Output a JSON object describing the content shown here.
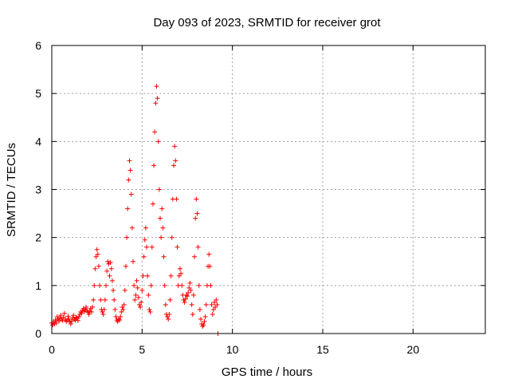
{
  "chart_data": {
    "type": "scatter",
    "title": "Day 093 of 2023, SRMTID for receiver grot",
    "xlabel": "GPS time / hours",
    "ylabel": "SRMTID / TECUs",
    "xlim": [
      0,
      24
    ],
    "ylim": [
      0,
      6
    ],
    "xticks": [
      0,
      5,
      10,
      15,
      20
    ],
    "yticks": [
      0,
      1,
      2,
      3,
      4,
      5,
      6
    ],
    "grid": true,
    "marker": "plus",
    "color": "#ff0000",
    "series": [
      {
        "points": [
          [
            0.0,
            0.22
          ],
          [
            0.05,
            0.18
          ],
          [
            0.1,
            0.25
          ],
          [
            0.15,
            0.2
          ],
          [
            0.2,
            0.28
          ],
          [
            0.25,
            0.22
          ],
          [
            0.3,
            0.35
          ],
          [
            0.35,
            0.3
          ],
          [
            0.4,
            0.26
          ],
          [
            0.45,
            0.32
          ],
          [
            0.5,
            0.38
          ],
          [
            0.55,
            0.3
          ],
          [
            0.6,
            0.27
          ],
          [
            0.65,
            0.34
          ],
          [
            0.7,
            0.42
          ],
          [
            0.75,
            0.3
          ],
          [
            0.8,
            0.25
          ],
          [
            0.85,
            0.28
          ],
          [
            0.9,
            0.36
          ],
          [
            0.95,
            0.3
          ],
          [
            1.0,
            0.24
          ],
          [
            1.05,
            0.2
          ],
          [
            1.1,
            0.26
          ],
          [
            1.15,
            0.33
          ],
          [
            1.2,
            0.38
          ],
          [
            1.25,
            0.3
          ],
          [
            1.3,
            0.28
          ],
          [
            1.35,
            0.34
          ],
          [
            1.4,
            0.32
          ],
          [
            1.45,
            0.27
          ],
          [
            1.5,
            0.35
          ],
          [
            1.55,
            0.4
          ],
          [
            1.6,
            0.45
          ],
          [
            1.65,
            0.42
          ],
          [
            1.7,
            0.48
          ],
          [
            1.75,
            0.52
          ],
          [
            1.8,
            0.46
          ],
          [
            1.85,
            0.5
          ],
          [
            1.9,
            0.55
          ],
          [
            1.95,
            0.48
          ],
          [
            2.0,
            0.44
          ],
          [
            2.05,
            0.4
          ],
          [
            2.1,
            0.46
          ],
          [
            2.15,
            0.52
          ],
          [
            2.2,
            0.45
          ],
          [
            2.25,
            0.55
          ],
          [
            2.3,
            0.7
          ],
          [
            2.35,
            1.0
          ],
          [
            2.4,
            1.35
          ],
          [
            2.45,
            1.6
          ],
          [
            2.5,
            1.75
          ],
          [
            2.55,
            1.65
          ],
          [
            2.6,
            1.4
          ],
          [
            2.65,
            1.0
          ],
          [
            2.7,
            0.7
          ],
          [
            2.75,
            0.5
          ],
          [
            2.8,
            0.45
          ],
          [
            2.85,
            0.4
          ],
          [
            2.9,
            0.5
          ],
          [
            2.95,
            0.7
          ],
          [
            3.0,
            1.0
          ],
          [
            3.05,
            1.3
          ],
          [
            3.1,
            1.5
          ],
          [
            3.15,
            1.45
          ],
          [
            3.2,
            1.2
          ],
          [
            3.25,
            1.48
          ],
          [
            3.3,
            1.35
          ],
          [
            3.35,
            1.1
          ],
          [
            3.4,
            0.9
          ],
          [
            3.45,
            0.7
          ],
          [
            3.5,
            0.5
          ],
          [
            3.55,
            0.35
          ],
          [
            3.6,
            0.28
          ],
          [
            3.65,
            0.25
          ],
          [
            3.7,
            0.3
          ],
          [
            3.75,
            0.28
          ],
          [
            3.8,
            0.35
          ],
          [
            3.85,
            0.45
          ],
          [
            3.9,
            0.55
          ],
          [
            3.95,
            0.5
          ],
          [
            4.0,
            0.6
          ],
          [
            4.05,
            0.9
          ],
          [
            4.1,
            1.4
          ],
          [
            4.15,
            2.0
          ],
          [
            4.2,
            2.6
          ],
          [
            4.25,
            3.2
          ],
          [
            4.3,
            3.6
          ],
          [
            4.35,
            3.4
          ],
          [
            4.4,
            2.9
          ],
          [
            4.45,
            2.2
          ],
          [
            4.5,
            1.5
          ],
          [
            4.55,
            1.0
          ],
          [
            4.6,
            0.7
          ],
          [
            4.65,
            0.8
          ],
          [
            4.7,
            1.1
          ],
          [
            4.75,
            0.95
          ],
          [
            4.8,
            0.75
          ],
          [
            4.85,
            0.6
          ],
          [
            4.9,
            0.55
          ],
          [
            4.95,
            0.65
          ],
          [
            5.0,
            0.9
          ],
          [
            5.05,
            1.2
          ],
          [
            5.1,
            1.6
          ],
          [
            5.15,
            1.95
          ],
          [
            5.2,
            2.2
          ],
          [
            5.25,
            1.8
          ],
          [
            5.3,
            1.2
          ],
          [
            5.35,
            0.8
          ],
          [
            5.4,
            0.5
          ],
          [
            5.45,
            0.45
          ],
          [
            5.5,
            1.0
          ],
          [
            5.55,
            1.8
          ],
          [
            5.6,
            2.7
          ],
          [
            5.65,
            3.5
          ],
          [
            5.7,
            4.2
          ],
          [
            5.75,
            4.8
          ],
          [
            5.8,
            5.15
          ],
          [
            5.85,
            4.9
          ],
          [
            5.9,
            4.0
          ],
          [
            5.95,
            3.0
          ],
          [
            6.0,
            2.4
          ],
          [
            6.05,
            2.0
          ],
          [
            6.1,
            2.6
          ],
          [
            6.15,
            2.2
          ],
          [
            6.2,
            1.6
          ],
          [
            6.25,
            1.0
          ],
          [
            6.3,
            0.6
          ],
          [
            6.35,
            0.4
          ],
          [
            6.4,
            0.35
          ],
          [
            6.45,
            0.3
          ],
          [
            6.5,
            0.4
          ],
          [
            6.55,
            0.7
          ],
          [
            6.6,
            1.2
          ],
          [
            6.65,
            2.0
          ],
          [
            6.7,
            2.8
          ],
          [
            6.75,
            3.5
          ],
          [
            6.8,
            3.9
          ],
          [
            6.85,
            3.6
          ],
          [
            6.9,
            2.8
          ],
          [
            6.95,
            1.8
          ],
          [
            7.0,
            1.0
          ],
          [
            7.05,
            1.2
          ],
          [
            7.1,
            1.35
          ],
          [
            7.15,
            1.25
          ],
          [
            7.2,
            1.0
          ],
          [
            7.25,
            0.8
          ],
          [
            7.3,
            0.7
          ],
          [
            7.35,
            0.65
          ],
          [
            7.4,
            0.72
          ],
          [
            7.45,
            0.8
          ],
          [
            7.5,
            0.78
          ],
          [
            7.55,
            0.85
          ],
          [
            7.6,
            0.95
          ],
          [
            7.65,
            1.05
          ],
          [
            7.7,
            0.9
          ],
          [
            7.75,
            0.6
          ],
          [
            7.8,
            0.4
          ],
          [
            7.85,
            0.8
          ],
          [
            7.9,
            1.6
          ],
          [
            7.95,
            2.4
          ],
          [
            8.0,
            2.8
          ],
          [
            8.05,
            2.5
          ],
          [
            8.1,
            1.8
          ],
          [
            8.15,
            1.0
          ],
          [
            8.2,
            0.5
          ],
          [
            8.25,
            0.3
          ],
          [
            8.3,
            0.2
          ],
          [
            8.35,
            0.15
          ],
          [
            8.4,
            0.18
          ],
          [
            8.45,
            0.25
          ],
          [
            8.5,
            0.35
          ],
          [
            8.55,
            0.6
          ],
          [
            8.6,
            1.0
          ],
          [
            8.65,
            1.4
          ],
          [
            8.7,
            1.65
          ],
          [
            8.75,
            1.4
          ],
          [
            8.8,
            1.0
          ],
          [
            8.85,
            0.6
          ],
          [
            8.9,
            0.4
          ],
          [
            8.95,
            0.5
          ],
          [
            9.0,
            0.65
          ],
          [
            9.05,
            0.55
          ],
          [
            9.1,
            0.7
          ],
          [
            9.15,
            0.6
          ],
          [
            9.2,
            0.0
          ]
        ]
      }
    ]
  }
}
